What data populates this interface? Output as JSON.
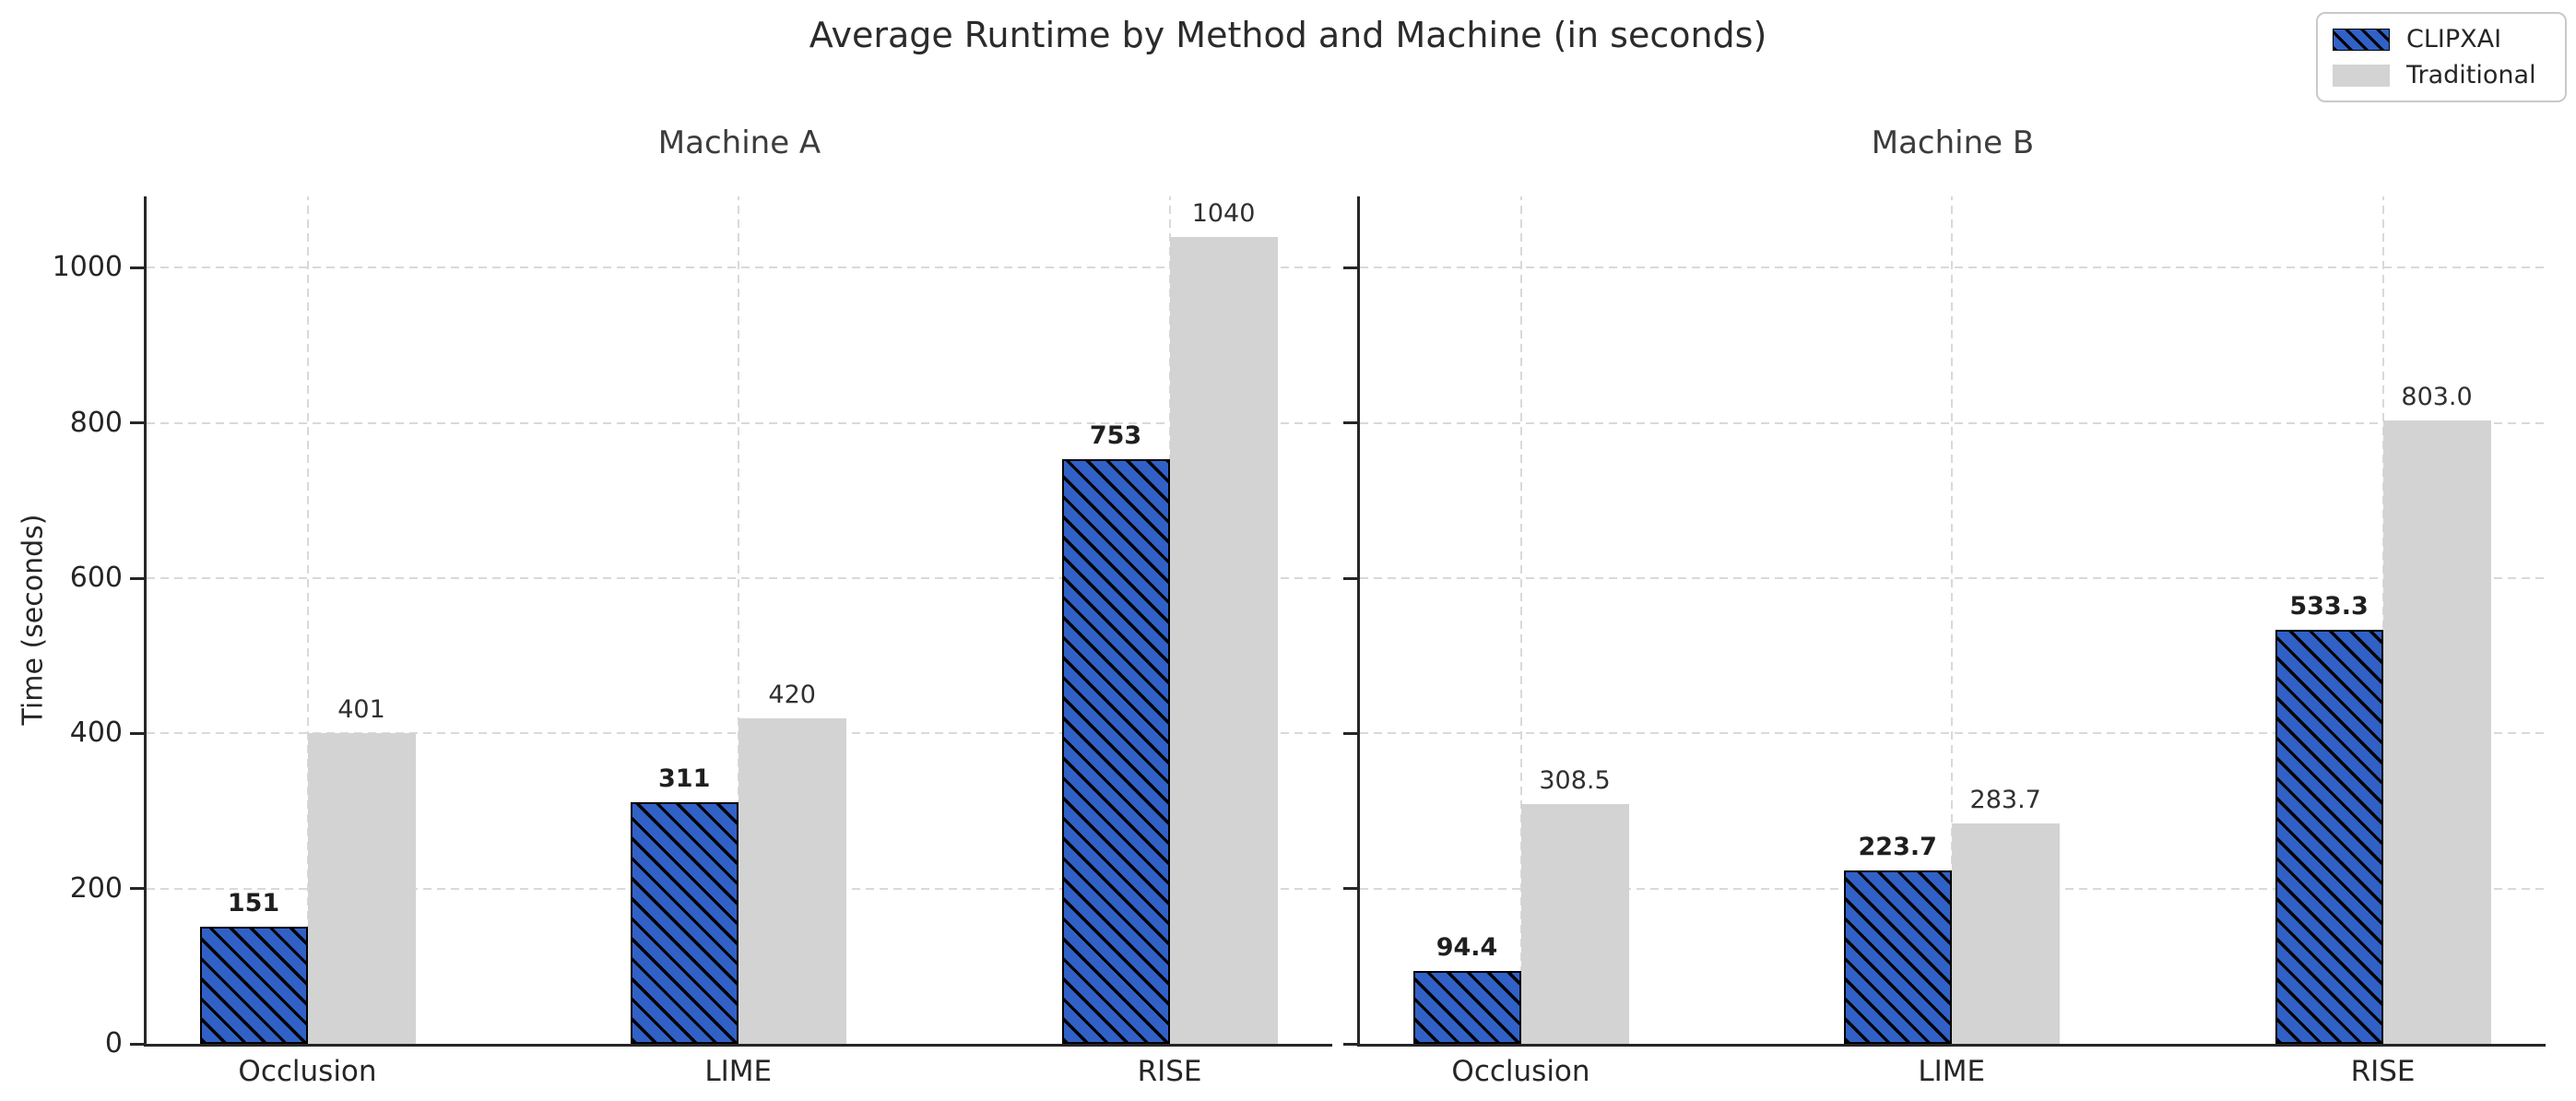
{
  "chart_data": {
    "type": "bar",
    "title": "Average Runtime by Method and Machine (in seconds)",
    "ylabel": "Time (seconds)",
    "categories": [
      "Occlusion",
      "LIME",
      "RISE"
    ],
    "ytick_labels": [
      "0",
      "200",
      "400",
      "600",
      "800",
      "1000"
    ],
    "ytick_values": [
      0,
      200,
      400,
      600,
      800,
      1000
    ],
    "ylim": [
      0,
      1092
    ],
    "grid": "dashed both axes",
    "legend": {
      "position": "upper right",
      "entries": [
        {
          "label": "CLIPXAI",
          "color": "#3161c6",
          "hatch": "//"
        },
        {
          "label": "Traditional",
          "color": "#d3d3d3",
          "hatch": ""
        }
      ]
    },
    "subplots": [
      {
        "title": "Machine A",
        "series": [
          {
            "name": "CLIPXAI",
            "values": [
              151,
              311,
              753
            ],
            "labels": [
              "151",
              "311",
              "753"
            ],
            "bold_labels": true
          },
          {
            "name": "Traditional",
            "values": [
              401,
              420,
              1040
            ],
            "labels": [
              "401",
              "420",
              "1040"
            ],
            "bold_labels": false
          }
        ]
      },
      {
        "title": "Machine B",
        "series": [
          {
            "name": "CLIPXAI",
            "values": [
              94.4,
              223.7,
              533.3
            ],
            "labels": [
              "94.4",
              "223.7",
              "533.3"
            ],
            "bold_labels": true
          },
          {
            "name": "Traditional",
            "values": [
              308.5,
              283.7,
              803.0
            ],
            "labels": [
              "308.5",
              "283.7",
              "803.0"
            ],
            "bold_labels": false
          }
        ]
      }
    ],
    "colors": {
      "clipxai_bar": "#3161c6",
      "traditional_bar": "#d3d3d3",
      "hatch": "#000000",
      "grid": "#d9d9d9",
      "text": "#262626"
    }
  }
}
